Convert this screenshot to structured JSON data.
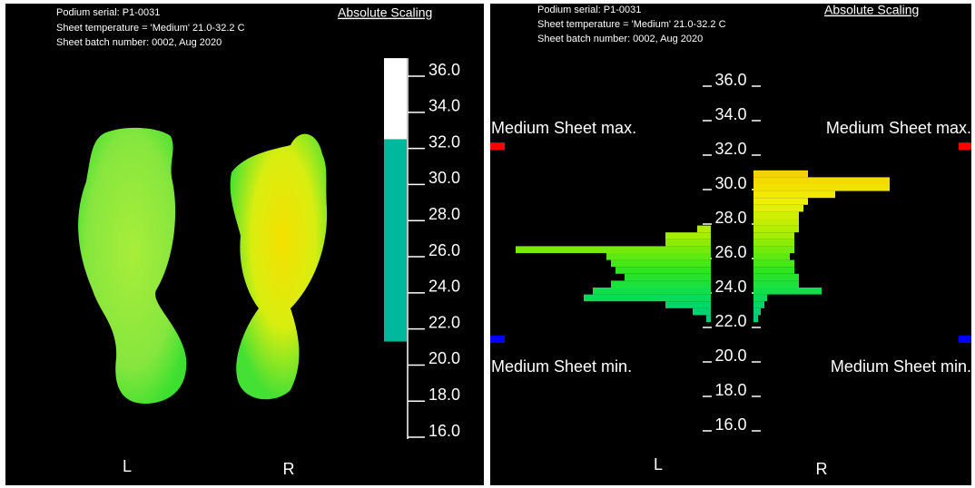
{
  "chart_data": [
    {
      "type": "thermal",
      "header": [
        "Podium serial: P1-0031",
        "Sheet temperature = 'Medium' 21.0-32.2 C",
        "Sheet batch number: 0002, Aug 2020"
      ],
      "mode": "Absolute Scaling",
      "categories": [
        "L",
        "R"
      ],
      "ylim": [
        15.6,
        36.7
      ],
      "yticks": [
        {
          "value": 16,
          "label": "16.0"
        },
        {
          "value": 18,
          "label": "18.0"
        },
        {
          "value": 20,
          "label": "20.0"
        },
        {
          "value": 22,
          "label": "22.0"
        },
        {
          "value": 24,
          "label": "24.0"
        },
        {
          "value": 26,
          "label": "26.0"
        },
        {
          "value": 28,
          "label": "28.0"
        },
        {
          "value": 30,
          "label": "30.0"
        },
        {
          "value": 32,
          "label": "32.0"
        },
        {
          "value": 34,
          "label": "34.0"
        },
        {
          "value": 36,
          "label": "36.0"
        }
      ],
      "colormap": [
        {
          "value": 21,
          "color": "#00b89c"
        },
        {
          "value": 23,
          "color": "#00d866"
        },
        {
          "value": 25,
          "color": "#2ee61e"
        },
        {
          "value": 27,
          "color": "#a4ee00"
        },
        {
          "value": 29,
          "color": "#eef000"
        },
        {
          "value": 30.6,
          "color": "#f4d200"
        },
        {
          "value": 32.2,
          "color": "#eeaa00"
        }
      ],
      "above_color": "#ffffff"
    },
    {
      "type": "histogram",
      "header": [
        "Podium serial: P1-0031",
        "Sheet temperature = 'Medium' 21.0-32.2 C",
        "Sheet batch number: 0002, Aug 2020"
      ],
      "mode": "Absolute Scaling",
      "bins": [
        22,
        22.4,
        22.8,
        23.2,
        23.6,
        24,
        24.4,
        24.8,
        25.2,
        25.6,
        26,
        26.4,
        26.8,
        27.2,
        27.6,
        28,
        28.4,
        28.8,
        29.2,
        29.6,
        30,
        30.4,
        30.8
      ],
      "series": [
        {
          "name": "L",
          "values": [
            5,
            20,
            50,
            140,
            130,
            110,
            95,
            105,
            110,
            115,
            215,
            50,
            50,
            15,
            0,
            0,
            0,
            0,
            0,
            0,
            0,
            0
          ]
        },
        {
          "name": "R",
          "values": [
            5,
            8,
            12,
            15,
            75,
            50,
            50,
            45,
            45,
            40,
            45,
            45,
            45,
            50,
            50,
            50,
            55,
            60,
            90,
            150,
            150,
            60
          ]
        }
      ],
      "ylim": [
        15.2,
        36.7
      ],
      "yticks": [
        {
          "value": 16,
          "label": "16.0"
        },
        {
          "value": 18,
          "label": "18.0"
        },
        {
          "value": 20,
          "label": "20.0"
        },
        {
          "value": 22,
          "label": "22.0"
        },
        {
          "value": 24,
          "label": "24.0"
        },
        {
          "value": 26,
          "label": "26.0"
        },
        {
          "value": 28,
          "label": "28.0"
        },
        {
          "value": 30,
          "label": "30.0"
        },
        {
          "value": 32,
          "label": "32.0"
        },
        {
          "value": 34,
          "label": "34.0"
        },
        {
          "value": 36,
          "label": "36.0"
        }
      ],
      "sheet_max": 32.2,
      "sheet_min": 21.0,
      "max_label": "Medium Sheet max.",
      "min_label": "Medium Sheet min.",
      "max_color": "#ff0000",
      "min_color": "#0000ff"
    }
  ]
}
